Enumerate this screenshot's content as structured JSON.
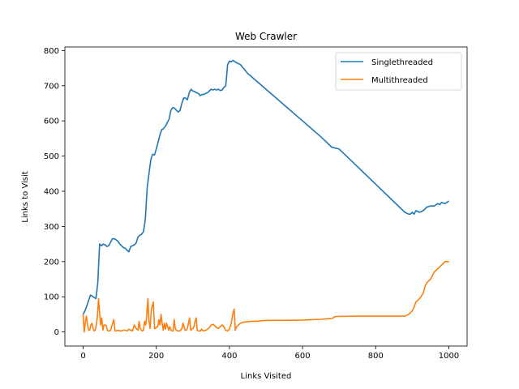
{
  "chart_data": {
    "type": "line",
    "title": "Web Crawler",
    "xlabel": "Links Visited",
    "ylabel": "Links to Visit",
    "xlim": [
      -50,
      1050
    ],
    "ylim": [
      -40,
      810
    ],
    "xticks": [
      0,
      200,
      400,
      600,
      800,
      1000
    ],
    "yticks": [
      0,
      100,
      200,
      300,
      400,
      500,
      600,
      700,
      800
    ],
    "grid": false,
    "legend_position": "top-right",
    "series": [
      {
        "name": "Singlethreaded",
        "color": "#1f77b4",
        "x": [
          0,
          5,
          10,
          15,
          20,
          25,
          30,
          35,
          40,
          45,
          50,
          55,
          60,
          65,
          70,
          75,
          80,
          85,
          90,
          95,
          100,
          105,
          110,
          115,
          120,
          125,
          130,
          135,
          140,
          145,
          150,
          155,
          160,
          165,
          170,
          175,
          180,
          185,
          190,
          195,
          200,
          205,
          210,
          215,
          220,
          225,
          230,
          235,
          240,
          245,
          250,
          255,
          260,
          265,
          270,
          275,
          280,
          285,
          290,
          295,
          300,
          305,
          310,
          315,
          320,
          325,
          330,
          335,
          340,
          345,
          350,
          355,
          360,
          365,
          370,
          375,
          380,
          385,
          390,
          395,
          400,
          405,
          410,
          415,
          420,
          430,
          450,
          500,
          550,
          600,
          650,
          680,
          700,
          750,
          800,
          850,
          880,
          890,
          895,
          900,
          905,
          910,
          920,
          930,
          940,
          950,
          960,
          970,
          975,
          980,
          990,
          1000
        ],
        "y": [
          50,
          60,
          75,
          90,
          105,
          102,
          98,
          95,
          140,
          250,
          245,
          250,
          248,
          243,
          245,
          255,
          265,
          265,
          262,
          258,
          250,
          245,
          240,
          238,
          232,
          228,
          243,
          245,
          248,
          253,
          270,
          275,
          278,
          285,
          320,
          410,
          450,
          490,
          505,
          503,
          520,
          540,
          560,
          575,
          578,
          585,
          595,
          605,
          630,
          638,
          636,
          630,
          625,
          630,
          650,
          665,
          665,
          660,
          680,
          690,
          685,
          683,
          680,
          678,
          672,
          675,
          675,
          678,
          680,
          685,
          690,
          688,
          690,
          688,
          690,
          686,
          688,
          695,
          700,
          760,
          770,
          768,
          772,
          768,
          765,
          760,
          735,
          690,
          645,
          600,
          555,
          525,
          520,
          470,
          420,
          370,
          340,
          335,
          335,
          340,
          335,
          345,
          340,
          345,
          355,
          358,
          358,
          365,
          362,
          368,
          365,
          372
        ]
      },
      {
        "name": "Multithreaded",
        "color": "#ff7f0e",
        "x": [
          0,
          3,
          6,
          9,
          12,
          15,
          18,
          21,
          24,
          27,
          30,
          33,
          36,
          39,
          42,
          45,
          48,
          51,
          54,
          57,
          60,
          63,
          66,
          69,
          72,
          75,
          78,
          81,
          84,
          87,
          90,
          95,
          100,
          105,
          110,
          115,
          120,
          125,
          130,
          135,
          140,
          145,
          150,
          153,
          156,
          159,
          162,
          165,
          168,
          171,
          174,
          177,
          180,
          183,
          186,
          189,
          192,
          195,
          198,
          201,
          204,
          207,
          210,
          213,
          216,
          219,
          222,
          225,
          228,
          231,
          234,
          237,
          240,
          243,
          246,
          249,
          252,
          255,
          258,
          261,
          264,
          267,
          270,
          273,
          276,
          279,
          282,
          285,
          288,
          291,
          294,
          297,
          300,
          303,
          306,
          309,
          312,
          315,
          318,
          321,
          324,
          327,
          330,
          335,
          340,
          345,
          350,
          355,
          360,
          365,
          370,
          375,
          380,
          385,
          390,
          395,
          400,
          405,
          410,
          413,
          416,
          420,
          430,
          440,
          460,
          480,
          500,
          550,
          600,
          650,
          680,
          690,
          700,
          750,
          800,
          850,
          875,
          880,
          890,
          900,
          905,
          910,
          920,
          930,
          935,
          940,
          950,
          960,
          970,
          980,
          985,
          990,
          995,
          1000
        ],
        "y": [
          50,
          0,
          30,
          45,
          20,
          5,
          5,
          20,
          25,
          10,
          3,
          5,
          20,
          45,
          95,
          55,
          20,
          40,
          5,
          20,
          20,
          18,
          5,
          3,
          3,
          5,
          15,
          25,
          35,
          3,
          3,
          5,
          3,
          3,
          5,
          5,
          3,
          8,
          5,
          3,
          20,
          10,
          5,
          30,
          10,
          5,
          3,
          5,
          30,
          20,
          50,
          95,
          30,
          10,
          60,
          75,
          85,
          10,
          10,
          15,
          15,
          35,
          20,
          50,
          25,
          5,
          25,
          8,
          25,
          15,
          5,
          15,
          5,
          3,
          3,
          35,
          10,
          5,
          3,
          3,
          3,
          5,
          10,
          25,
          15,
          5,
          5,
          10,
          25,
          40,
          5,
          8,
          10,
          15,
          30,
          40,
          5,
          3,
          3,
          3,
          8,
          5,
          3,
          5,
          8,
          12,
          20,
          22,
          18,
          12,
          10,
          15,
          20,
          15,
          5,
          3,
          8,
          25,
          55,
          65,
          5,
          15,
          25,
          28,
          30,
          31,
          33,
          33,
          34,
          36,
          38,
          44,
          44,
          45,
          45,
          45,
          45,
          45,
          50,
          60,
          70,
          85,
          95,
          110,
          130,
          140,
          150,
          170,
          180,
          190,
          195,
          200,
          200,
          200
        ]
      }
    ]
  }
}
